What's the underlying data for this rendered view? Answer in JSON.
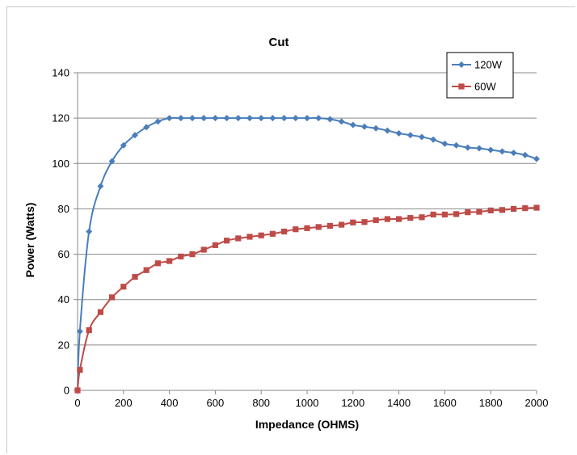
{
  "chart_data": {
    "type": "line",
    "title": "Cut",
    "xlabel": "Impedance (OHMS)",
    "ylabel": "Power (Watts)",
    "xlim": [
      0,
      2000
    ],
    "ylim": [
      0,
      140
    ],
    "xticks": [
      0,
      200,
      400,
      600,
      800,
      1000,
      1200,
      1400,
      1600,
      1800,
      2000
    ],
    "yticks": [
      0,
      20,
      40,
      60,
      80,
      100,
      120,
      140
    ],
    "grid": "horizontal",
    "legend_position": "top-right",
    "series": [
      {
        "name": "120W",
        "color": "#4a7ebb",
        "marker": "diamond",
        "points": [
          [
            0,
            0
          ],
          [
            10,
            26
          ],
          [
            50,
            70
          ],
          [
            100,
            90
          ],
          [
            150,
            101
          ],
          [
            200,
            108
          ],
          [
            250,
            112.5
          ],
          [
            300,
            116
          ],
          [
            350,
            118.5
          ],
          [
            400,
            120
          ],
          [
            450,
            120
          ],
          [
            500,
            120
          ],
          [
            550,
            120
          ],
          [
            600,
            120
          ],
          [
            650,
            120
          ],
          [
            700,
            120
          ],
          [
            750,
            120
          ],
          [
            800,
            120
          ],
          [
            850,
            120
          ],
          [
            900,
            120
          ],
          [
            950,
            120
          ],
          [
            1000,
            120
          ],
          [
            1050,
            120
          ],
          [
            1100,
            119.5
          ],
          [
            1150,
            118.5
          ],
          [
            1200,
            117
          ],
          [
            1250,
            116.2
          ],
          [
            1300,
            115.5
          ],
          [
            1350,
            114.5
          ],
          [
            1400,
            113.3
          ],
          [
            1450,
            112.5
          ],
          [
            1500,
            111.7
          ],
          [
            1550,
            110.5
          ],
          [
            1600,
            108.7
          ],
          [
            1650,
            108
          ],
          [
            1700,
            107
          ],
          [
            1750,
            106.7
          ],
          [
            1800,
            106
          ],
          [
            1850,
            105.3
          ],
          [
            1900,
            104.7
          ],
          [
            1950,
            103.7
          ],
          [
            2000,
            102
          ]
        ]
      },
      {
        "name": "60W",
        "color": "#be4b48",
        "marker": "square",
        "points": [
          [
            0,
            0
          ],
          [
            10,
            9
          ],
          [
            50,
            26.5
          ],
          [
            100,
            34.5
          ],
          [
            150,
            41
          ],
          [
            200,
            45.7
          ],
          [
            250,
            50
          ],
          [
            300,
            53
          ],
          [
            350,
            56
          ],
          [
            400,
            57
          ],
          [
            450,
            59
          ],
          [
            500,
            60
          ],
          [
            550,
            62
          ],
          [
            600,
            64
          ],
          [
            650,
            66
          ],
          [
            700,
            67
          ],
          [
            750,
            67.7
          ],
          [
            800,
            68.3
          ],
          [
            850,
            69
          ],
          [
            900,
            70
          ],
          [
            950,
            71
          ],
          [
            1000,
            71.5
          ],
          [
            1050,
            72
          ],
          [
            1100,
            72.5
          ],
          [
            1150,
            73
          ],
          [
            1200,
            74
          ],
          [
            1250,
            74.2
          ],
          [
            1300,
            75
          ],
          [
            1350,
            75.5
          ],
          [
            1400,
            75.5
          ],
          [
            1450,
            76
          ],
          [
            1500,
            76.3
          ],
          [
            1550,
            77.5
          ],
          [
            1600,
            77.5
          ],
          [
            1650,
            77.7
          ],
          [
            1700,
            78.5
          ],
          [
            1750,
            78.7
          ],
          [
            1800,
            79.3
          ],
          [
            1850,
            79.5
          ],
          [
            1900,
            80
          ],
          [
            1950,
            80.3
          ],
          [
            2000,
            80.5
          ]
        ]
      }
    ]
  }
}
